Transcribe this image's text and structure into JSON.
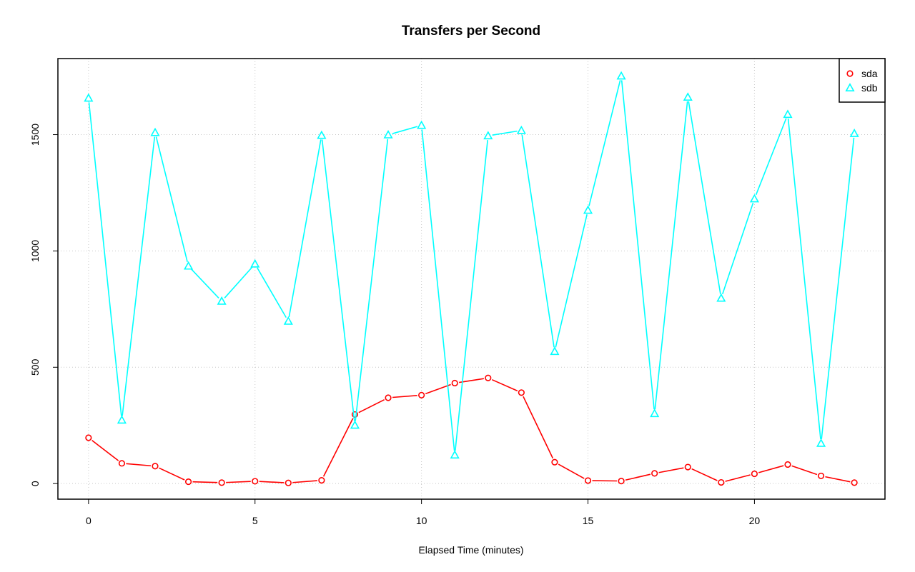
{
  "chart_data": {
    "type": "line",
    "title": "Transfers per Second",
    "xlabel": "Elapsed Time (minutes)",
    "ylabel": "",
    "xlim": [
      -0.92,
      23.92
    ],
    "ylim": [
      -67,
      1827
    ],
    "x_ticks": [
      0,
      5,
      10,
      15,
      20
    ],
    "y_ticks": [
      0,
      500,
      1000,
      1500
    ],
    "grid": true,
    "legend_position": "top-right",
    "x": [
      0,
      1,
      2,
      3,
      4,
      5,
      6,
      7,
      8,
      9,
      10,
      11,
      12,
      13,
      14,
      15,
      16,
      17,
      18,
      19,
      20,
      21,
      22,
      23
    ],
    "series": [
      {
        "name": "sda",
        "color": "#ff0000",
        "marker": "circle",
        "values": [
          197,
          87,
          75,
          8,
          4,
          10,
          3,
          14,
          297,
          369,
          380,
          432,
          454,
          391,
          92,
          13,
          11,
          44,
          71,
          5,
          42,
          82,
          33,
          4
        ]
      },
      {
        "name": "sdb",
        "color": "#00ffff",
        "marker": "triangle",
        "values": [
          1657,
          273,
          1509,
          935,
          784,
          944,
          698,
          1497,
          251,
          1499,
          1540,
          123,
          1495,
          1518,
          568,
          1175,
          1752,
          301,
          1661,
          797,
          1224,
          1587,
          173,
          1505
        ]
      }
    ]
  }
}
